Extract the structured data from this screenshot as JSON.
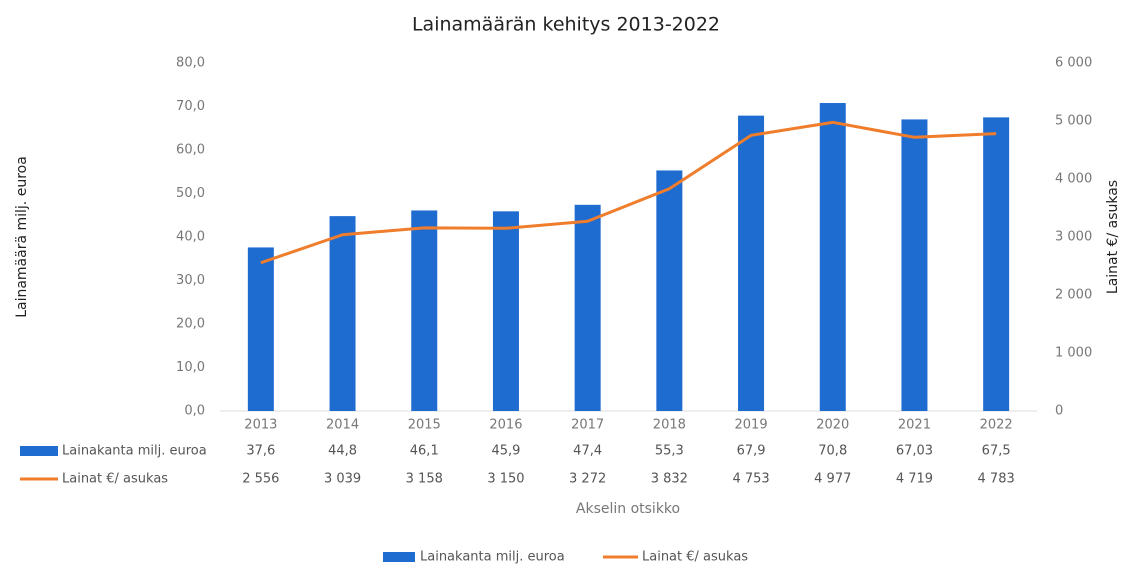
{
  "chart_data": {
    "type": "bar_line",
    "title": "Lainamäärän kehitys 2013-2022",
    "y_label": "Lainamäärä milj. euroa",
    "y2_label": "Lainat €/ asukas",
    "x_label": "Akselin otsikko",
    "categories": [
      "2013",
      "2014",
      "2015",
      "2016",
      "2017",
      "2018",
      "2019",
      "2020",
      "2021",
      "2022"
    ],
    "series": [
      {
        "name": "Lainakanta milj. euroa",
        "type": "bar",
        "color": "#1f6cd0",
        "values": [
          37.6,
          44.8,
          46.1,
          45.9,
          47.4,
          55.3,
          67.9,
          70.8,
          67.03,
          67.5
        ],
        "value_labels": [
          "37,6",
          "44,8",
          "46,1",
          "45,9",
          "47,4",
          "55,3",
          "67,9",
          "70,8",
          "67,03",
          "67,5"
        ]
      },
      {
        "name": "Lainat €/ asukas",
        "type": "line",
        "axis": "y2",
        "color": "#f07d2c",
        "values": [
          2556,
          3039,
          3158,
          3150,
          3272,
          3832,
          4753,
          4977,
          4719,
          4783
        ],
        "value_labels": [
          "2 556",
          "3 039",
          "3 158",
          "3 150",
          "3 272",
          "3 832",
          "4 753",
          "4 977",
          "4 719",
          "4 783"
        ]
      }
    ],
    "ylim": [
      0,
      80
    ],
    "yticks": [
      {
        "value": 0,
        "label": "0,0"
      },
      {
        "value": 10,
        "label": "10,0"
      },
      {
        "value": 20,
        "label": "20,0"
      },
      {
        "value": 30,
        "label": "30,0"
      },
      {
        "value": 40,
        "label": "40,0"
      },
      {
        "value": 50,
        "label": "50,0"
      },
      {
        "value": 60,
        "label": "60,0"
      },
      {
        "value": 70,
        "label": "70,0"
      },
      {
        "value": 80,
        "label": "80,0"
      }
    ],
    "y2lim": [
      0,
      6000
    ],
    "y2ticks": [
      0,
      {
        "value": 1000,
        "label": "1 000"
      },
      {
        "value": 2000,
        "label": "2 000"
      },
      {
        "value": 3000,
        "label": "3 000"
      },
      {
        "value": 4000,
        "label": "4 000"
      },
      {
        "value": 5000,
        "label": "5 000"
      },
      {
        "value": 6000,
        "label": "6 000"
      }
    ],
    "grid": false,
    "legend": "bottom"
  }
}
